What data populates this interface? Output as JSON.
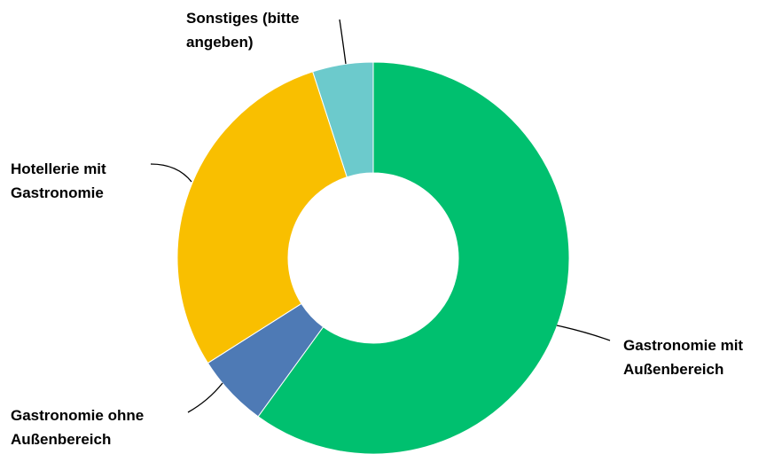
{
  "chart_data": {
    "type": "donut",
    "title": "",
    "series": [
      {
        "values": [
          {
            "label": "Gastronomie mit Außenbereich",
            "label_lines": [
              "Gastronomie mit",
              "Außenbereich"
            ],
            "value": 60,
            "color": "#00C06F"
          },
          {
            "label": "Gastronomie ohne Außenbereich",
            "label_lines": [
              "Gastronomie ohne",
              "Außenbereich"
            ],
            "value": 6,
            "color": "#4E7AB5"
          },
          {
            "label": "Hotellerie mit Gastronomie",
            "label_lines": [
              "Hotellerie mit",
              "Gastronomie"
            ],
            "value": 29,
            "color": "#F9BF00"
          },
          {
            "label": "Sonstiges (bitte angeben)",
            "label_lines": [
              "Sonstiges (bitte",
              "angeben)"
            ],
            "value": 5,
            "color": "#6CCACC"
          }
        ]
      }
    ],
    "start_angle": "12 o'clock",
    "direction": "clockwise",
    "legend": "none",
    "labels": "outside with leader lines"
  }
}
